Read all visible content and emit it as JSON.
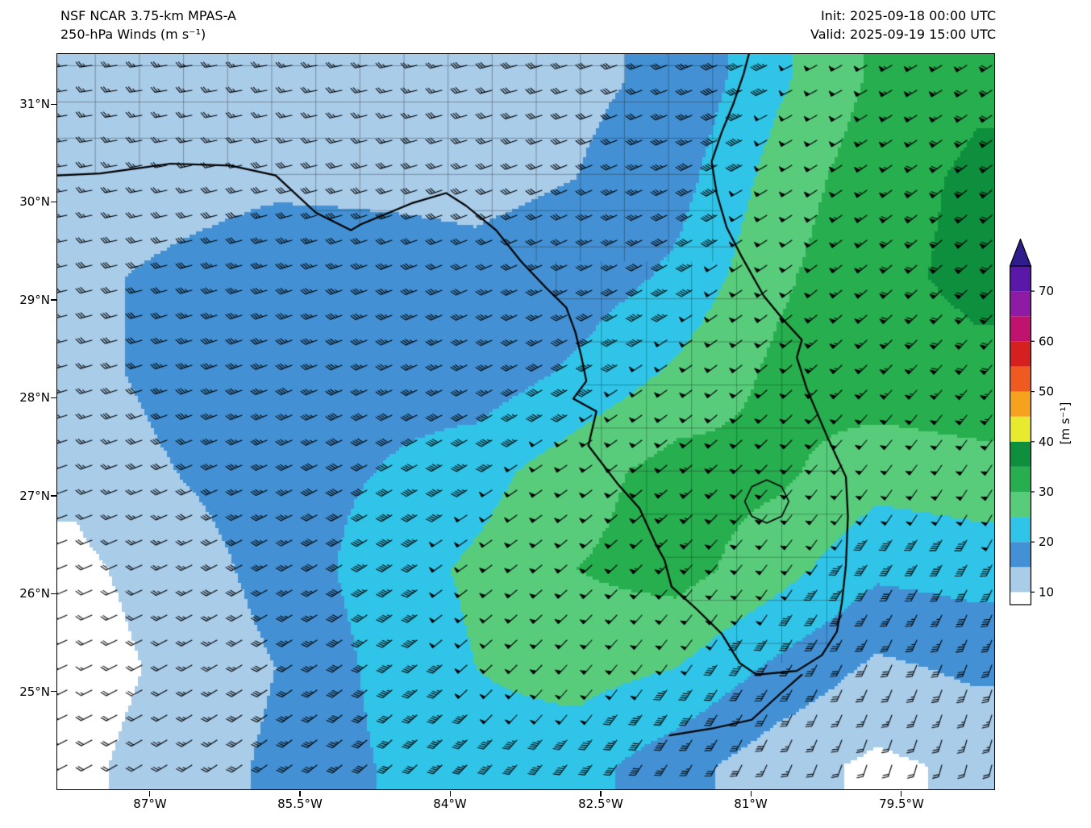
{
  "header": {
    "title_line1": "NSF NCAR 3.75-km MPAS-A",
    "title_line2": "250-hPa Winds (m s⁻¹)",
    "init": "Init: 2025-09-18 00:00 UTC",
    "valid": "Valid: 2025-09-19 15:00 UTC"
  },
  "axes": {
    "lat_ticks": [
      {
        "label": "31°N",
        "lat": 31
      },
      {
        "label": "30°N",
        "lat": 30
      },
      {
        "label": "29°N",
        "lat": 29
      },
      {
        "label": "28°N",
        "lat": 28
      },
      {
        "label": "27°N",
        "lat": 27
      },
      {
        "label": "26°N",
        "lat": 26
      },
      {
        "label": "25°N",
        "lat": 25
      }
    ],
    "lon_ticks": [
      {
        "label": "87°W",
        "lon": -87
      },
      {
        "label": "85.5°W",
        "lon": -85.5
      },
      {
        "label": "84°W",
        "lon": -84
      },
      {
        "label": "82.5°W",
        "lon": -82.5
      },
      {
        "label": "81°W",
        "lon": -81
      },
      {
        "label": "79.5°W",
        "lon": -79.5
      }
    ]
  },
  "colorbar": {
    "label": "[m s⁻¹]",
    "ticks": [
      70,
      60,
      50,
      40,
      30,
      20,
      10
    ],
    "min": 7.5,
    "max": 75,
    "arrow_color": "#2f1d8e",
    "bands": [
      {
        "from": 7.5,
        "to": 10,
        "color": "#ffffff"
      },
      {
        "from": 10,
        "to": 15,
        "color": "#a9cce9"
      },
      {
        "from": 15,
        "to": 20,
        "color": "#4391d4"
      },
      {
        "from": 20,
        "to": 25,
        "color": "#30c5e8"
      },
      {
        "from": 25,
        "to": 30,
        "color": "#59cc7c"
      },
      {
        "from": 30,
        "to": 35,
        "color": "#27ae4f"
      },
      {
        "from": 35,
        "to": 40,
        "color": "#0e8f3e"
      },
      {
        "from": 40,
        "to": 45,
        "color": "#e8ea2f"
      },
      {
        "from": 45,
        "to": 50,
        "color": "#f6a21f"
      },
      {
        "from": 50,
        "to": 55,
        "color": "#ee5a1f"
      },
      {
        "from": 55,
        "to": 60,
        "color": "#d61f1f"
      },
      {
        "from": 60,
        "to": 65,
        "color": "#c0136e"
      },
      {
        "from": 65,
        "to": 70,
        "color": "#8d1ba3"
      },
      {
        "from": 70,
        "to": 75,
        "color": "#5a18a8"
      }
    ]
  },
  "chart_data": {
    "type": "heatmap",
    "title": "250-hPa wind speed (m s⁻¹) with wind barbs over Florida region",
    "units": "m s⁻¹",
    "overlays": [
      "wind barbs",
      "coastlines",
      "county boundaries"
    ],
    "lon_range": [
      -87.93,
      -78.58
    ],
    "lat_range": [
      24.01,
      31.52
    ],
    "grid_lons": [
      -87.75,
      -86.75,
      -85.75,
      -84.75,
      -83.75,
      -82.75,
      -81.75,
      -80.75,
      -79.75,
      -78.75
    ],
    "grid_lats": [
      31.25,
      30.25,
      29.25,
      28.25,
      27.25,
      26.25,
      25.25,
      24.25
    ],
    "speed_grid": [
      [
        12,
        12,
        13,
        13,
        14,
        14,
        16,
        24,
        31,
        34
      ],
      [
        12,
        13,
        14,
        14,
        14,
        15,
        18,
        27,
        33,
        36
      ],
      [
        14,
        16,
        18,
        17,
        16,
        17,
        21,
        29,
        34,
        36
      ],
      [
        13,
        17,
        19,
        18,
        17,
        21,
        26,
        31,
        33,
        34
      ],
      [
        11,
        15,
        18,
        20,
        23,
        28,
        32,
        31,
        27,
        28
      ],
      [
        9,
        12,
        17,
        22,
        26,
        30,
        32,
        27,
        21,
        22
      ],
      [
        8,
        11,
        15,
        21,
        25,
        27,
        25,
        19,
        14,
        16
      ],
      [
        9,
        12,
        16,
        20,
        23,
        22,
        17,
        12,
        9,
        11
      ]
    ],
    "direction_from_deg_grid": [
      [
        262,
        261,
        260,
        258,
        256,
        253,
        249,
        244,
        240,
        237
      ],
      [
        260,
        258,
        256,
        254,
        251,
        248,
        244,
        239,
        234,
        231
      ],
      [
        257,
        255,
        253,
        250,
        247,
        244,
        240,
        234,
        229,
        226
      ],
      [
        254,
        252,
        249,
        246,
        243,
        240,
        235,
        229,
        224,
        220
      ],
      [
        251,
        248,
        245,
        242,
        238,
        234,
        229,
        223,
        218,
        214
      ],
      [
        248,
        245,
        241,
        237,
        233,
        228,
        223,
        217,
        211,
        207
      ],
      [
        245,
        241,
        237,
        232,
        227,
        222,
        216,
        210,
        204,
        200
      ],
      [
        242,
        238,
        233,
        228,
        223,
        217,
        211,
        204,
        198,
        194
      ]
    ],
    "map_outline": {
      "coast": [
        [
          -87.93,
          30.28
        ],
        [
          -87.5,
          30.3
        ],
        [
          -87.15,
          30.35
        ],
        [
          -86.8,
          30.4
        ],
        [
          -86.2,
          30.38
        ],
        [
          -85.75,
          30.28
        ],
        [
          -85.35,
          29.9
        ],
        [
          -85.0,
          29.72
        ],
        [
          -84.9,
          29.78
        ],
        [
          -84.38,
          30.0
        ],
        [
          -84.05,
          30.1
        ],
        [
          -83.85,
          29.97
        ],
        [
          -83.55,
          29.72
        ],
        [
          -83.3,
          29.4
        ],
        [
          -83.05,
          29.13
        ],
        [
          -82.85,
          28.93
        ],
        [
          -82.76,
          28.68
        ],
        [
          -82.7,
          28.43
        ],
        [
          -82.65,
          28.18
        ],
        [
          -82.78,
          28.0
        ],
        [
          -82.55,
          27.87
        ],
        [
          -82.63,
          27.52
        ],
        [
          -82.33,
          27.12
        ],
        [
          -82.12,
          26.88
        ],
        [
          -81.95,
          26.5
        ],
        [
          -81.87,
          26.35
        ],
        [
          -81.8,
          26.08
        ],
        [
          -81.55,
          25.85
        ],
        [
          -81.3,
          25.6
        ],
        [
          -81.12,
          25.3
        ],
        [
          -80.95,
          25.18
        ],
        [
          -80.55,
          25.22
        ],
        [
          -80.3,
          25.38
        ],
        [
          -80.15,
          25.62
        ],
        [
          -80.1,
          25.92
        ],
        [
          -80.06,
          26.3
        ],
        [
          -80.04,
          26.8
        ],
        [
          -80.06,
          27.2
        ],
        [
          -80.25,
          27.62
        ],
        [
          -80.45,
          28.1
        ],
        [
          -80.55,
          28.42
        ],
        [
          -80.5,
          28.6
        ],
        [
          -80.68,
          28.8
        ],
        [
          -80.88,
          29.05
        ],
        [
          -81.1,
          29.45
        ],
        [
          -81.25,
          29.75
        ],
        [
          -81.35,
          30.1
        ],
        [
          -81.4,
          30.42
        ],
        [
          -81.3,
          30.72
        ],
        [
          -81.18,
          31.02
        ],
        [
          -81.08,
          31.32
        ],
        [
          -81.02,
          31.55
        ]
      ],
      "keys": [
        [
          -80.5,
          25.18
        ],
        [
          -80.7,
          25.0
        ],
        [
          -81.0,
          24.72
        ],
        [
          -81.4,
          24.63
        ],
        [
          -81.82,
          24.56
        ]
      ],
      "lake_okeechobee": [
        [
          -80.63,
          26.95
        ],
        [
          -80.7,
          27.1
        ],
        [
          -80.85,
          27.17
        ],
        [
          -81.0,
          27.1
        ],
        [
          -81.07,
          26.95
        ],
        [
          -81.0,
          26.8
        ],
        [
          -80.85,
          26.73
        ],
        [
          -80.7,
          26.8
        ]
      ]
    }
  }
}
